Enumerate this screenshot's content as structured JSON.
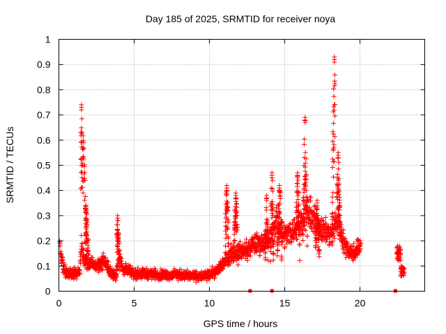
{
  "chart_data": {
    "type": "scatter",
    "title": "Day 185 of 2025, SRMTID for receiver noya",
    "xlabel": "GPS time / hours",
    "ylabel": "SRMTID / TECUs",
    "xlim": [
      0,
      24.3
    ],
    "ylim": [
      0,
      1
    ],
    "x_ticks": [
      0,
      5,
      10,
      15,
      20
    ],
    "x_tick_labels": [
      "0",
      "5",
      "10",
      "15",
      "20"
    ],
    "y_ticks": [
      0,
      0.1,
      0.2,
      0.3,
      0.4,
      0.5,
      0.6,
      0.7,
      0.8,
      0.9,
      1
    ],
    "y_tick_labels": [
      "0",
      "0.1",
      "0.2",
      "0.3",
      "0.4",
      "0.5",
      "0.6",
      "0.7",
      "0.8",
      "0.9",
      "1"
    ],
    "grid": true,
    "marker": "+",
    "color": "#ff0000",
    "series": [
      {
        "name": "SRMTID",
        "trend": {
          "x": [
            0,
            0.1,
            0.3,
            0.6,
            1.0,
            1.4,
            1.5,
            1.6,
            1.8,
            2.1,
            2.5,
            3.0,
            3.5,
            3.8,
            4.0,
            4.2,
            5.0,
            6.0,
            7.0,
            8.0,
            9.0,
            9.8,
            10.5,
            11.0,
            11.5,
            12.0,
            12.5,
            13.0,
            13.5,
            14.0,
            14.5,
            15.0,
            15.5,
            16.0,
            16.5,
            17.0,
            17.5,
            18.0,
            18.5,
            19.0,
            19.5,
            20.0
          ],
          "y": [
            0.22,
            0.15,
            0.09,
            0.07,
            0.07,
            0.08,
            0.2,
            0.14,
            0.12,
            0.11,
            0.1,
            0.12,
            0.07,
            0.06,
            0.16,
            0.09,
            0.07,
            0.07,
            0.065,
            0.065,
            0.06,
            0.06,
            0.08,
            0.12,
            0.15,
            0.16,
            0.16,
            0.19,
            0.19,
            0.2,
            0.28,
            0.22,
            0.24,
            0.26,
            0.32,
            0.28,
            0.25,
            0.22,
            0.28,
            0.18,
            0.15,
            0.18
          ]
        },
        "x_range": [
          0.05,
          20.05
        ],
        "count": 1900,
        "spikes": [
          {
            "x": [
              1.45,
              1.85
            ],
            "peak_x": 1.5,
            "peak_y": 0.73,
            "floor_y": 0.18
          },
          {
            "x": [
              1.75,
              1.95
            ],
            "peak_x": 1.8,
            "peak_y": 0.33,
            "floor_y": 0.2
          },
          {
            "x": [
              3.85,
              4.05
            ],
            "peak_x": 3.9,
            "peak_y": 0.29,
            "floor_y": 0.12
          },
          {
            "x": [
              11.05,
              11.3
            ],
            "peak_x": 11.15,
            "peak_y": 0.41,
            "floor_y": 0.15
          },
          {
            "x": [
              11.6,
              11.9
            ],
            "peak_x": 11.75,
            "peak_y": 0.38,
            "floor_y": 0.18
          },
          {
            "x": [
              13.7,
              13.9
            ],
            "peak_x": 13.8,
            "peak_y": 0.37,
            "floor_y": 0.18
          },
          {
            "x": [
              14.05,
              14.25
            ],
            "peak_x": 14.15,
            "peak_y": 0.46,
            "floor_y": 0.2
          },
          {
            "x": [
              14.5,
              14.8
            ],
            "peak_x": 14.65,
            "peak_y": 0.41,
            "floor_y": 0.2
          },
          {
            "x": [
              15.75,
              16.0
            ],
            "peak_x": 15.85,
            "peak_y": 0.46,
            "floor_y": 0.2
          },
          {
            "x": [
              16.2,
              16.5
            ],
            "peak_x": 16.35,
            "peak_y": 0.68,
            "floor_y": 0.24
          },
          {
            "x": [
              17.0,
              17.3
            ],
            "peak_x": 17.15,
            "peak_y": 0.35,
            "floor_y": 0.2
          },
          {
            "x": [
              18.15,
              18.35
            ],
            "peak_x": 18.3,
            "peak_y": 0.92,
            "floor_y": 0.3
          },
          {
            "x": [
              18.45,
              18.7
            ],
            "peak_x": 18.55,
            "peak_y": 0.54,
            "floor_y": 0.26
          }
        ],
        "clusters": [
          {
            "x": [
              22.45,
              22.7
            ],
            "y": [
              0.12,
              0.18
            ],
            "count": 35
          },
          {
            "x": [
              22.7,
              22.95
            ],
            "y": [
              0.06,
              0.1
            ],
            "count": 35
          }
        ]
      }
    ],
    "zero_markers_x": [
      12.7,
      14.15,
      22.35
    ]
  }
}
